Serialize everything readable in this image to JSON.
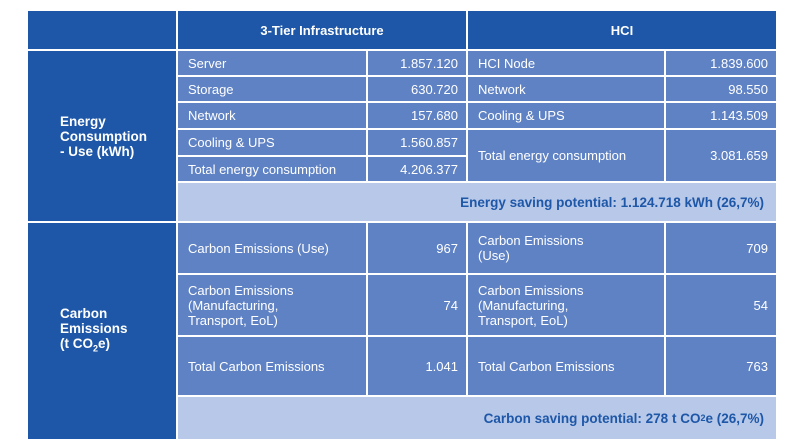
{
  "header": {
    "col1": "3-Tier Infrastructure",
    "col2": "HCI"
  },
  "energy": {
    "row_label": "Energy\nConsumption\n- Use (kWh)",
    "tier3": [
      {
        "label": "Server",
        "value": "1.857.120"
      },
      {
        "label": "Storage",
        "value": "630.720"
      },
      {
        "label": "Network",
        "value": "157.680"
      },
      {
        "label": "Cooling & UPS",
        "value": "1.560.857"
      },
      {
        "label": "Total energy consumption",
        "value": "4.206.377"
      }
    ],
    "hci": [
      {
        "label": "HCI Node",
        "value": "1.839.600"
      },
      {
        "label": "Network",
        "value": "98.550"
      },
      {
        "label": "Cooling & UPS",
        "value": "1.143.509"
      },
      {
        "label": "Total energy consumption",
        "value": "3.081.659"
      }
    ],
    "saving": "Energy saving potential: 1.124.718 kWh (26,7%)"
  },
  "carbon": {
    "row_label_line1": "Carbon",
    "row_label_line2": "Emissions",
    "row_label_prefix": "(t CO",
    "row_label_sub": "2",
    "row_label_suffix": "e)",
    "tier3": [
      {
        "label": "Carbon Emissions (Use)",
        "value": "967"
      },
      {
        "label": "Carbon Emissions\n(Manufacturing,\nTransport, EoL)",
        "value": "74"
      },
      {
        "label": "Total Carbon Emissions",
        "value": "1.041"
      }
    ],
    "hci": [
      {
        "label": "Carbon Emissions\n(Use)",
        "value": "709"
      },
      {
        "label": "Carbon Emissions\n(Manufacturing,\nTransport, EoL)",
        "value": "54"
      },
      {
        "label": "Total Carbon Emissions",
        "value": "763"
      }
    ],
    "saving_prefix": "Carbon saving potential: 278 t CO",
    "saving_sub": "2",
    "saving_suffix": "e (26,7%)"
  },
  "colors": {
    "dark_blue": "#1e57a8",
    "mid_blue": "#5f82c4",
    "light_blue": "#b7c8e8",
    "text": "#ffffff"
  }
}
